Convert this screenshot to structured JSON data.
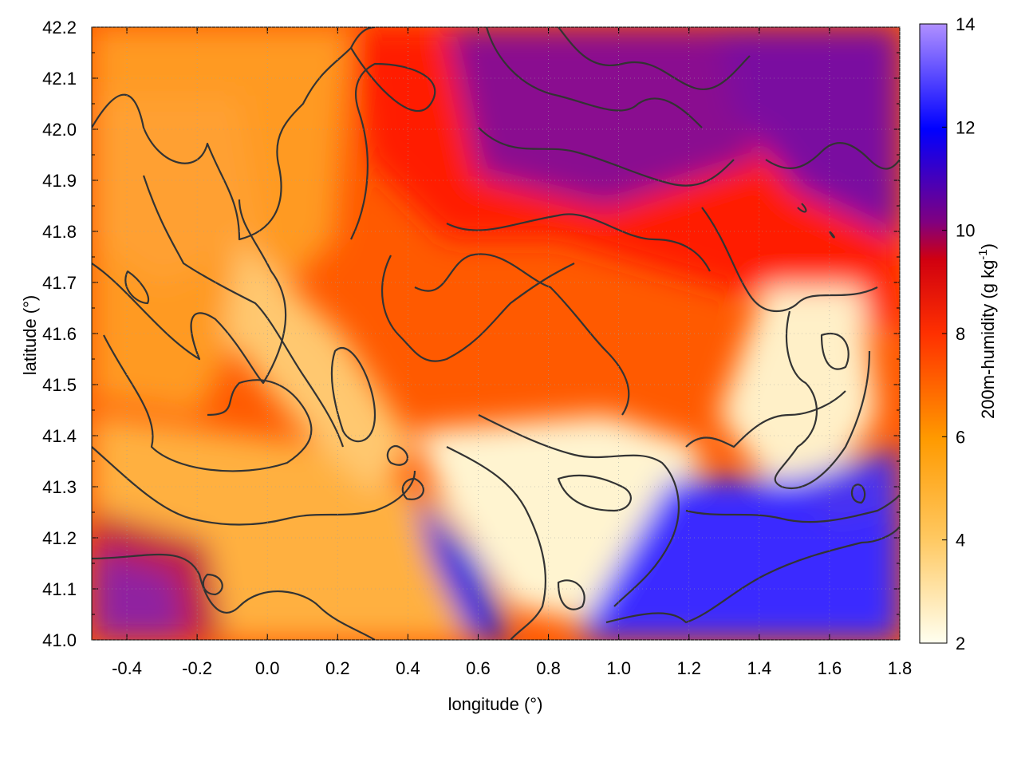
{
  "chart_data": {
    "type": "heatmap",
    "xlabel": "longitude (°)",
    "ylabel": "latitude (°)",
    "colorbar_label": "200m-humidity (g kg",
    "colorbar_label_sup": "-1",
    "colorbar_label_close": ")",
    "xlim": [
      -0.5,
      1.8
    ],
    "ylim": [
      41.0,
      42.2
    ],
    "clim": [
      2,
      14
    ],
    "x_ticks": [
      -0.4,
      -0.2,
      0.0,
      0.2,
      0.4,
      0.6,
      0.8,
      1.0,
      1.2,
      1.4,
      1.6,
      1.8
    ],
    "x_tick_labels": [
      "-0.4",
      "-0.2",
      "0.0",
      "0.2",
      "0.4",
      "0.6",
      "0.8",
      "1.0",
      "1.2",
      "1.4",
      "1.6",
      "1.8"
    ],
    "y_ticks": [
      41.0,
      41.1,
      41.2,
      41.3,
      41.4,
      41.5,
      41.6,
      41.7,
      41.8,
      41.9,
      42.0,
      42.1,
      42.2
    ],
    "y_tick_labels": [
      "41.0",
      "41.1",
      "41.2",
      "41.3",
      "41.4",
      "41.5",
      "41.6",
      "41.7",
      "41.8",
      "41.9",
      "42.0",
      "42.1",
      "42.2"
    ],
    "colorbar_ticks": [
      2,
      4,
      6,
      8,
      10,
      12,
      14
    ],
    "colorbar_tick_labels": [
      "2",
      "4",
      "6",
      "8",
      "10",
      "12",
      "14"
    ],
    "colormap": [
      "#fffff0",
      "#ffa500",
      "#ff0000",
      "#800080",
      "#0000ff",
      "#b090ff"
    ],
    "grid": true,
    "contour_color": "#333333"
  }
}
